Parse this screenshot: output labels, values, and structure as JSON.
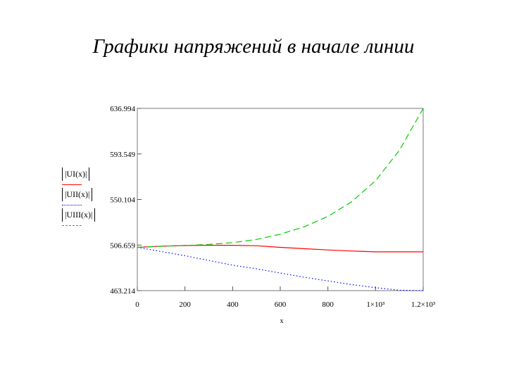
{
  "title": "Графики напряжений в начале линии",
  "chart_data": {
    "type": "line",
    "title": "",
    "xlabel": "x",
    "ylabel": "",
    "xlim": [
      0,
      1200
    ],
    "ylim": [
      463.214,
      636.994
    ],
    "x_ticks": [
      {
        "value": 0,
        "label": "0"
      },
      {
        "value": 200,
        "label": "200"
      },
      {
        "value": 400,
        "label": "400"
      },
      {
        "value": 600,
        "label": "600"
      },
      {
        "value": 800,
        "label": "800"
      },
      {
        "value": 1000,
        "label": "1×10³"
      },
      {
        "value": 1200,
        "label": "1.2×10³"
      }
    ],
    "y_ticks": [
      {
        "value": 463.214,
        "label": "463.214"
      },
      {
        "value": 506.659,
        "label": "506.659"
      },
      {
        "value": 550.104,
        "label": "550.104"
      },
      {
        "value": 593.549,
        "label": "593.549"
      },
      {
        "value": 636.994,
        "label": "636.994"
      }
    ],
    "legend_position": "left",
    "grid": true,
    "x": [
      0,
      100,
      200,
      300,
      400,
      500,
      600,
      700,
      800,
      900,
      1000,
      1100,
      1200
    ],
    "series": [
      {
        "name": "|UI(x)|",
        "color": "#ff0000",
        "dash": "solid",
        "values": [
          504.5,
          505.6,
          506.2,
          506.5,
          506.4,
          506.0,
          504.5,
          503.2,
          502.0,
          501.0,
          500.2,
          500.2,
          500.2
        ]
      },
      {
        "name": "|UII(x)|",
        "color": "#0000ff",
        "dash": "dotted",
        "values": [
          504.5,
          500.5,
          496.5,
          492.0,
          487.5,
          484.0,
          480.0,
          476.0,
          472.5,
          469.0,
          466.0,
          463.6,
          463.2
        ]
      },
      {
        "name": "|UIII(x)|",
        "color": "#00cc00",
        "dash": "dashed",
        "values": [
          504.5,
          505.5,
          506.3,
          507.3,
          509.0,
          512.0,
          517.0,
          524.0,
          534.0,
          548.0,
          568.0,
          597.0,
          636.994
        ]
      }
    ]
  }
}
